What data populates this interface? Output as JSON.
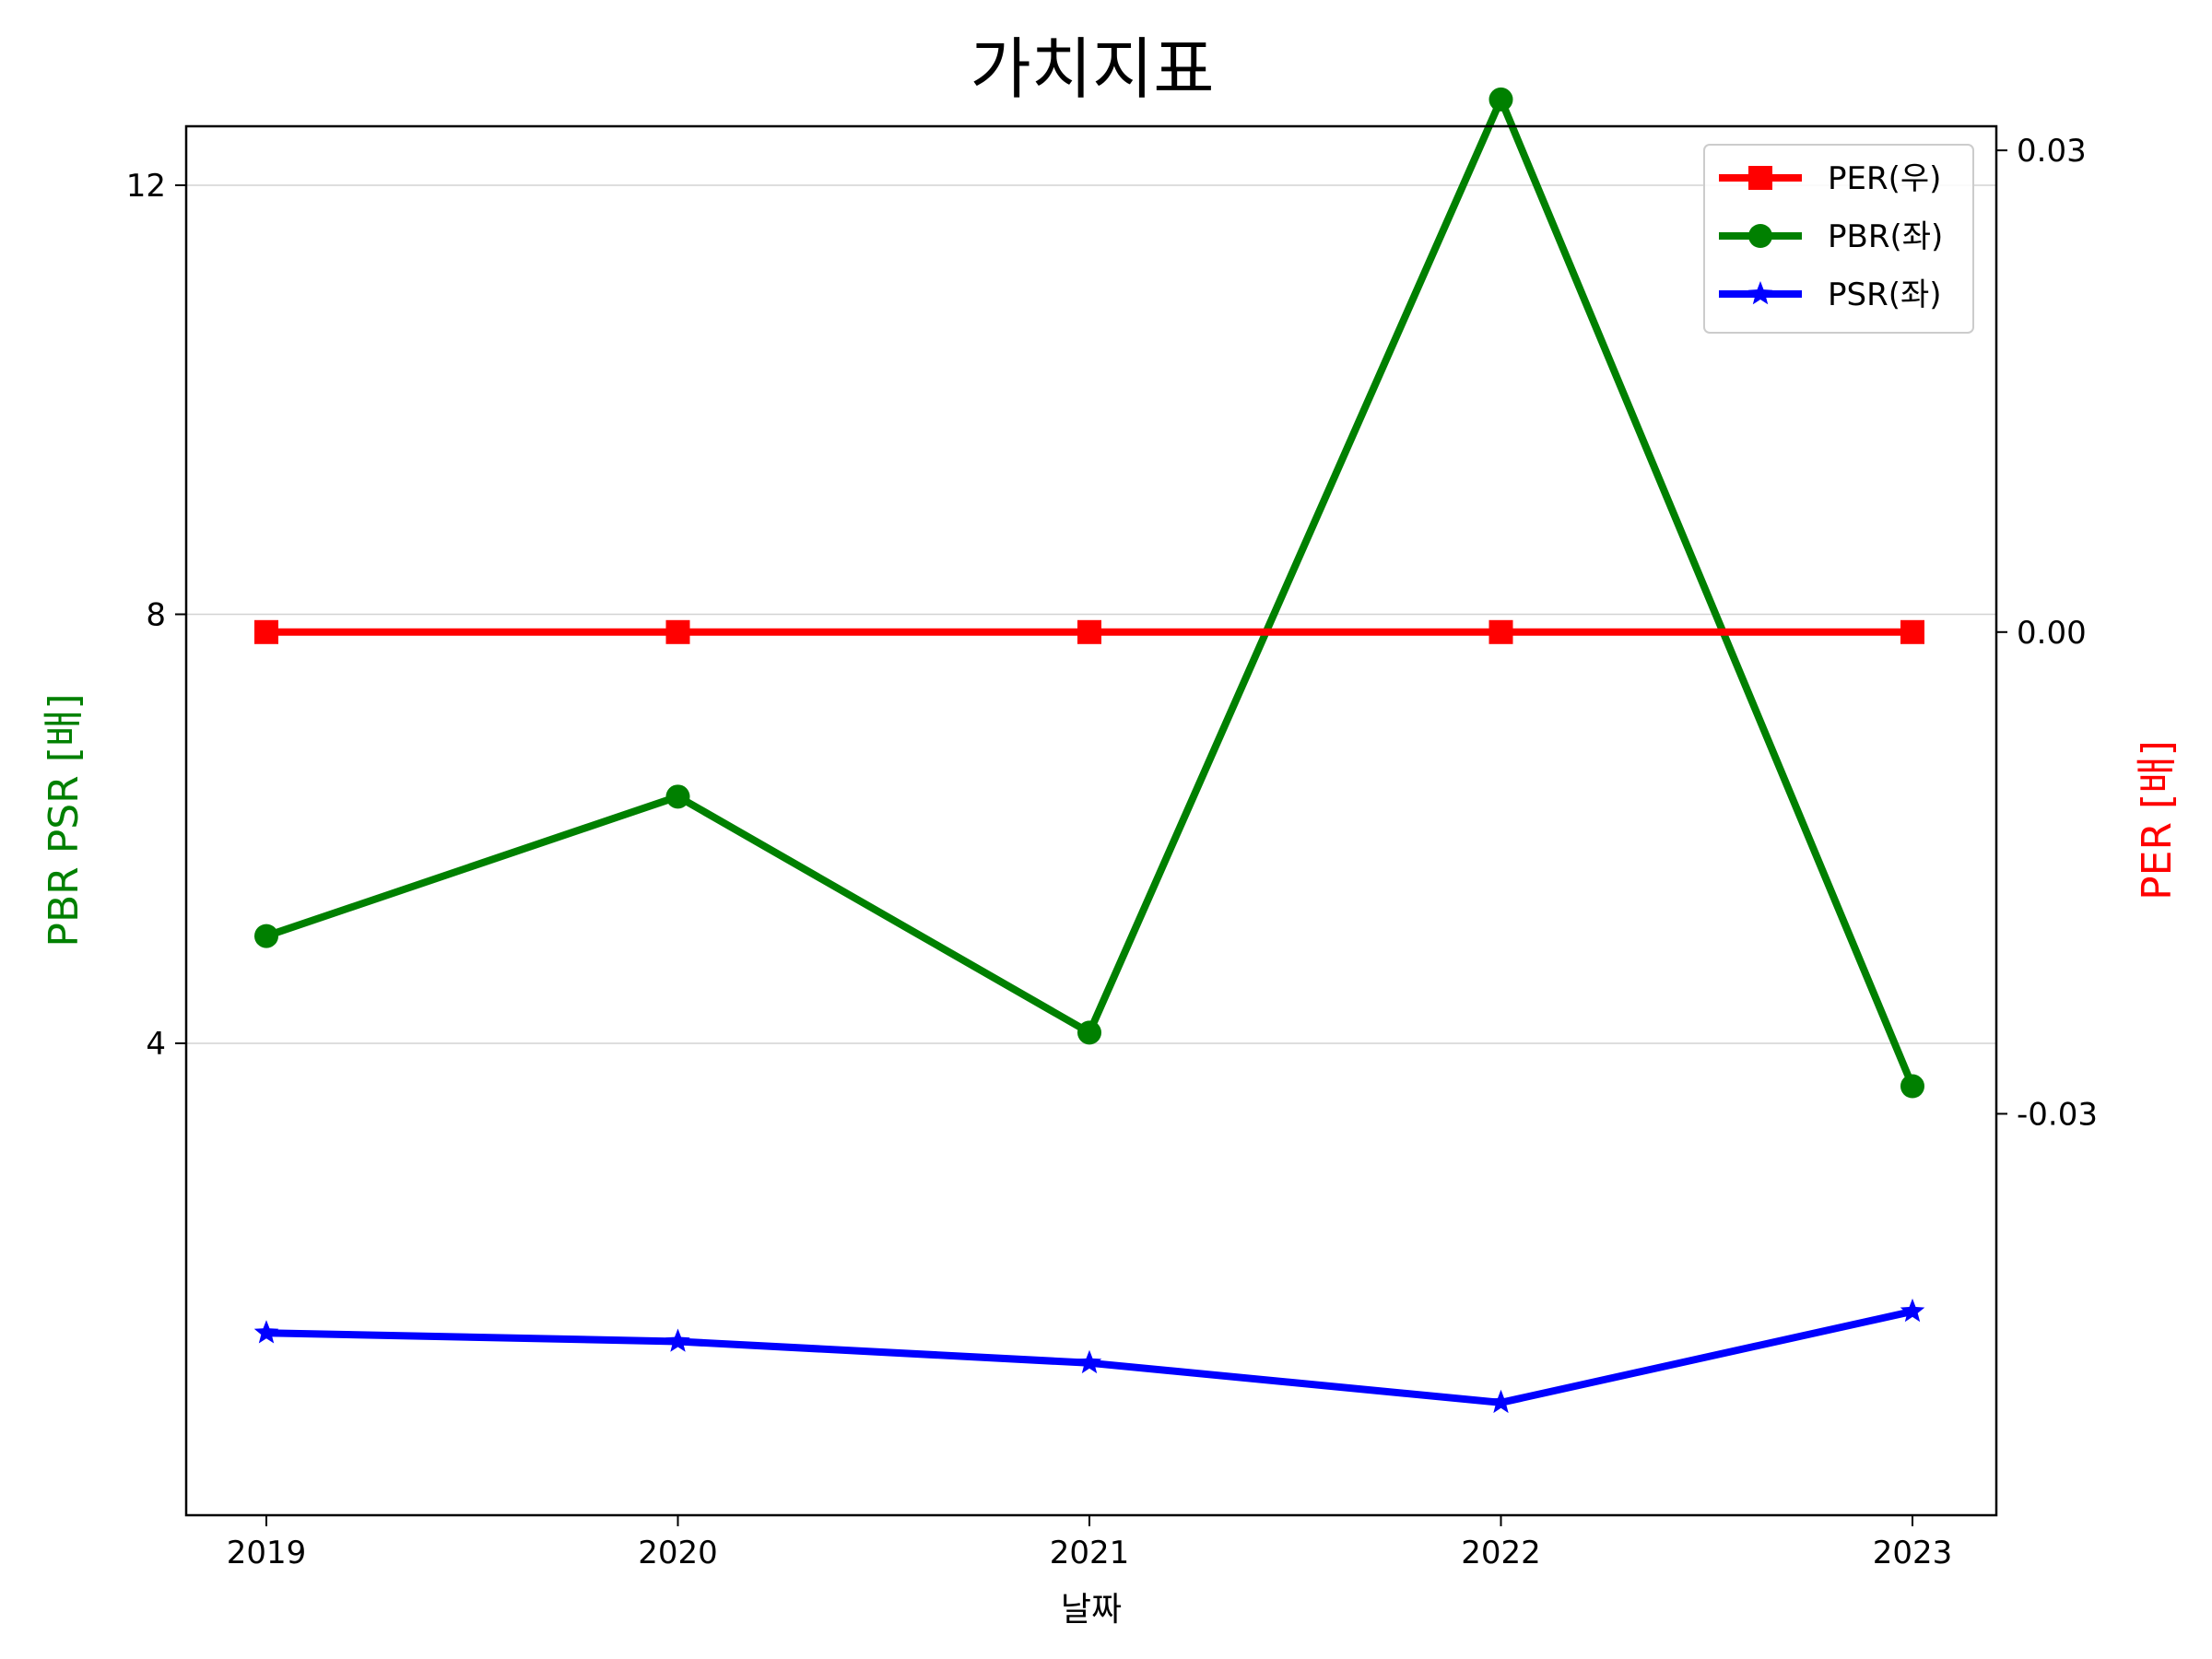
{
  "chart_data": {
    "type": "line",
    "title": "가치지표",
    "xlabel": "날짜",
    "ylabel_left": "PBR PSR [배]",
    "ylabel_right": "PER [배]",
    "x": [
      "2019",
      "2020",
      "2021",
      "2022",
      "2023"
    ],
    "left_axis": {
      "ylim": [
        -0.4,
        12.55
      ],
      "ticks": [
        4,
        8,
        12
      ],
      "tick_labels": [
        "4",
        "8",
        "12"
      ],
      "grid": true
    },
    "right_axis": {
      "ylim": [
        -0.055,
        0.0315
      ],
      "ticks": [
        -0.03,
        0.0,
        0.03
      ],
      "tick_labels": [
        "-0.03",
        "0.00",
        "0.03"
      ]
    },
    "series": [
      {
        "name": "PER(우)",
        "axis": "right",
        "marker": "square",
        "color": "#ff0000",
        "values": [
          0,
          0,
          0,
          0,
          0
        ]
      },
      {
        "name": "PBR(좌)",
        "axis": "left",
        "marker": "circle",
        "color": "#008000",
        "values": [
          5.0,
          6.3,
          4.1,
          12.8,
          3.6
        ]
      },
      {
        "name": "PSR(좌)",
        "axis": "left",
        "marker": "star",
        "color": "#0000ff",
        "values": [
          1.3,
          1.22,
          1.02,
          0.65,
          1.5
        ]
      }
    ],
    "legend": {
      "position": "top-right",
      "entries": [
        "PER(우)",
        "PBR(좌)",
        "PSR(좌)"
      ]
    }
  }
}
